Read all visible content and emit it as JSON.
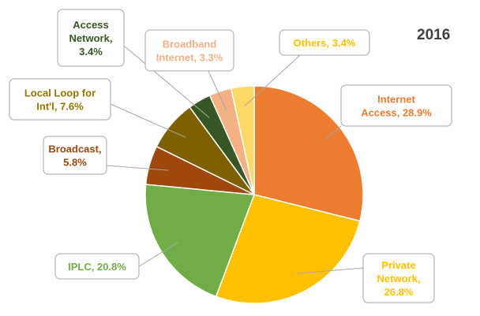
{
  "chart_data": {
    "type": "pie",
    "title": "2016",
    "start_angle_deg": 0,
    "direction": "clockwise",
    "slices": [
      {
        "name": "Internet Access",
        "value": 28.9,
        "label": [
          "Internet",
          "Access, 28.9%"
        ],
        "color": "#ED7D31",
        "text_color": "#ED7D31"
      },
      {
        "name": "Private Network",
        "value": 26.8,
        "label": [
          "Private",
          "Network,",
          "26.8%"
        ],
        "color": "#FFC000",
        "text_color": "#FFC000"
      },
      {
        "name": "IPLC",
        "value": 20.8,
        "label": [
          "IPLC, 20.8%"
        ],
        "color": "#70AD47",
        "text_color": "#70AD47"
      },
      {
        "name": "Broadcast",
        "value": 5.8,
        "label": [
          "Broadcast,",
          "5.8%"
        ],
        "color": "#9E480E",
        "text_color": "#9E480E"
      },
      {
        "name": "Local Loop for Int'l",
        "value": 7.6,
        "label": [
          "Local Loop for",
          "Int'l, 7.6%"
        ],
        "color": "#7F6000",
        "text_color": "#997300"
      },
      {
        "name": "Access Network",
        "value": 3.4,
        "label": [
          "Access",
          "Network,",
          "3.4%"
        ],
        "color": "#375623",
        "text_color": "#375623"
      },
      {
        "name": "Broadband Internet",
        "value": 3.3,
        "label": [
          "Broadband",
          "Internet, 3.3%"
        ],
        "color": "#F4B183",
        "text_color": "#F4B183"
      },
      {
        "name": "Others",
        "value": 3.4,
        "label": [
          "Others, 3.4%"
        ],
        "color": "#FFD966",
        "text_color": "#FFC000"
      }
    ]
  }
}
